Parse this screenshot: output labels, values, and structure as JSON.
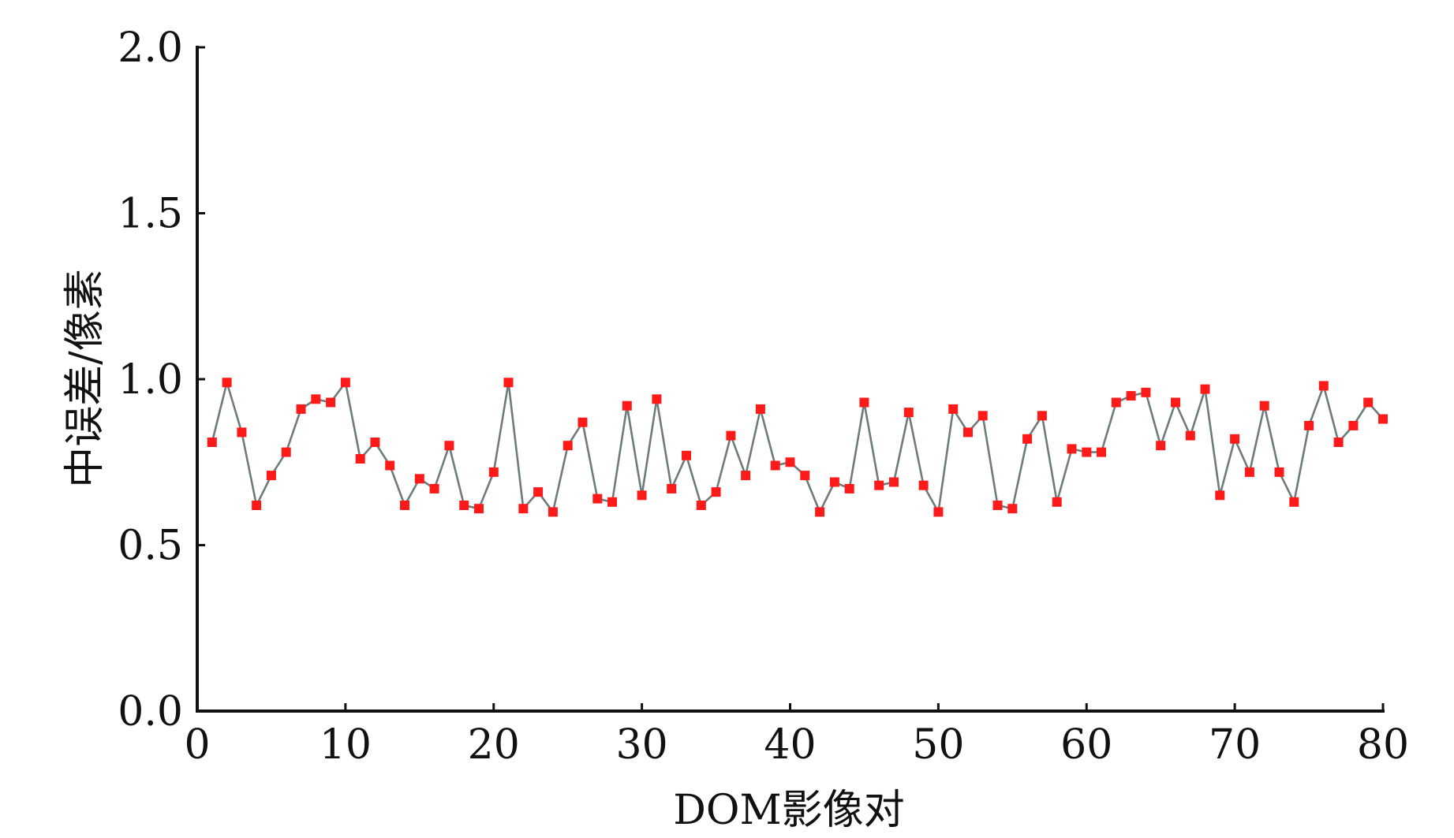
{
  "chart_data": {
    "type": "line",
    "xlabel": "DOM影像对",
    "ylabel": "中误差/像素",
    "xlim": [
      0,
      80
    ],
    "ylim": [
      0.0,
      2.0
    ],
    "x_ticks": [
      "0",
      "10",
      "20",
      "30",
      "40",
      "50",
      "60",
      "70",
      "80"
    ],
    "y_ticks": [
      "0.0",
      "0.5",
      "1.0",
      "1.5",
      "2.0"
    ],
    "grid": false,
    "legend": "none",
    "line_color": "#6e7b7b",
    "marker_color": "#ff1a1a",
    "series": [
      {
        "x": [
          1,
          2,
          3,
          4,
          5,
          6,
          7,
          8,
          9,
          10,
          11,
          12,
          13,
          14,
          15,
          16,
          17,
          18,
          19,
          20,
          21,
          22,
          23,
          24,
          25,
          26,
          27,
          28,
          29,
          30,
          31,
          32,
          33,
          34,
          35,
          36,
          37,
          38,
          39,
          40,
          41,
          42,
          43,
          44,
          45,
          46,
          47,
          48,
          49,
          50,
          51,
          52,
          53,
          54,
          55,
          56,
          57,
          58,
          59,
          60,
          61,
          62,
          63,
          64,
          65,
          66,
          67,
          68,
          69,
          70,
          71,
          72,
          73,
          74,
          75,
          76,
          77,
          78,
          79,
          80
        ],
        "values": [
          0.81,
          0.99,
          0.84,
          0.62,
          0.71,
          0.78,
          0.91,
          0.94,
          0.93,
          0.99,
          0.76,
          0.81,
          0.74,
          0.62,
          0.7,
          0.67,
          0.8,
          0.62,
          0.61,
          0.72,
          0.99,
          0.61,
          0.66,
          0.6,
          0.8,
          0.87,
          0.64,
          0.63,
          0.92,
          0.65,
          0.94,
          0.67,
          0.77,
          0.62,
          0.66,
          0.83,
          0.71,
          0.91,
          0.74,
          0.75,
          0.71,
          0.6,
          0.69,
          0.67,
          0.93,
          0.68,
          0.69,
          0.9,
          0.68,
          0.6,
          0.91,
          0.84,
          0.89,
          0.62,
          0.61,
          0.82,
          0.89,
          0.63,
          0.79,
          0.78,
          0.78,
          0.93,
          0.95,
          0.96,
          0.8,
          0.93,
          0.83,
          0.97,
          0.65,
          0.82,
          0.72,
          0.92,
          0.72,
          0.63,
          0.86,
          0.98,
          0.81,
          0.86,
          0.93,
          0.88
        ]
      }
    ]
  }
}
